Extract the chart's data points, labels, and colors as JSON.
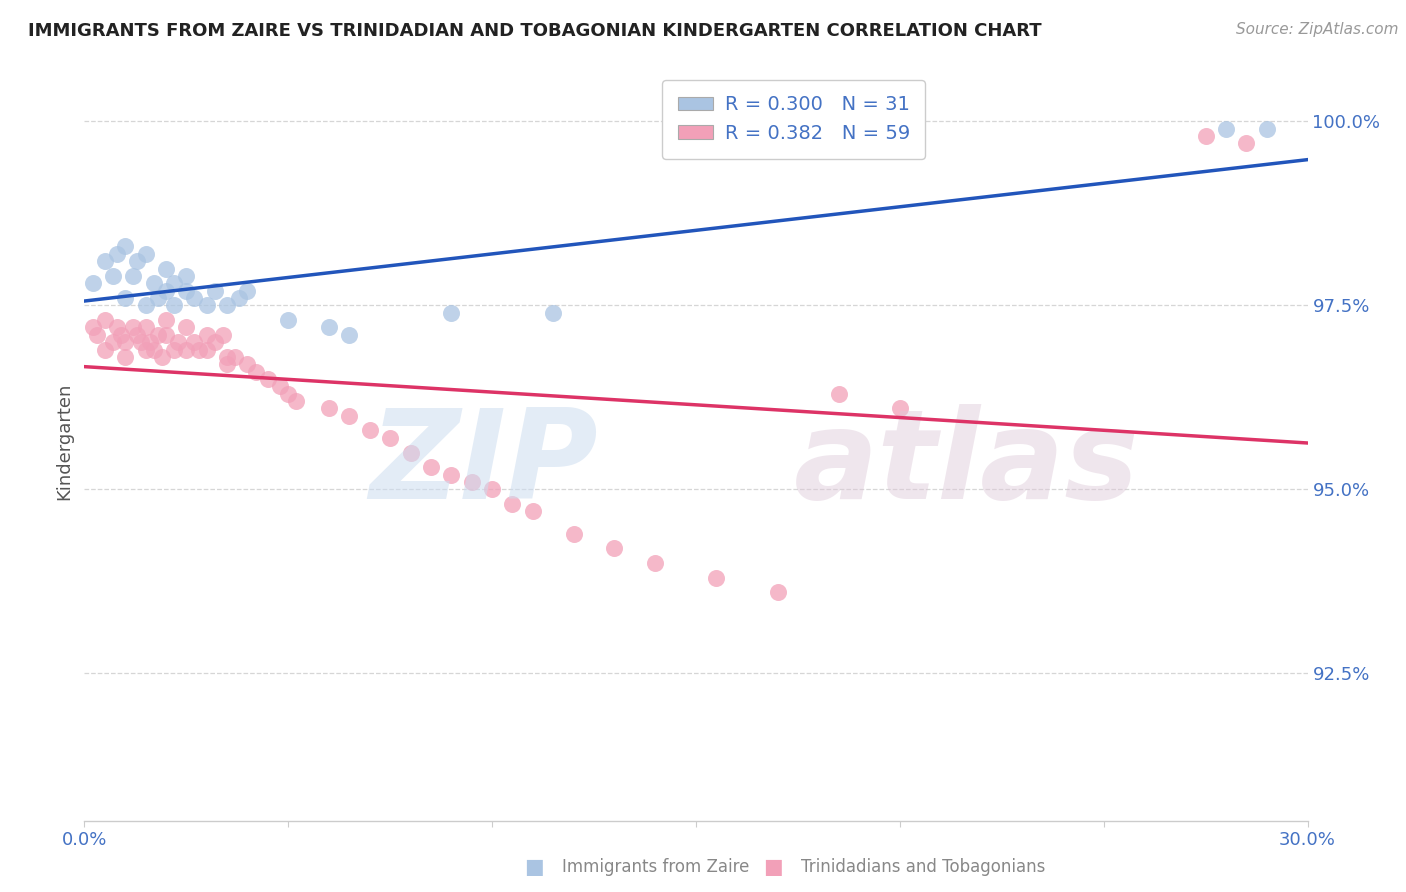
{
  "title": "IMMIGRANTS FROM ZAIRE VS TRINIDADIAN AND TOBAGONIAN KINDERGARTEN CORRELATION CHART",
  "source_text": "Source: ZipAtlas.com",
  "ylabel": "Kindergarten",
  "xlim": [
    0.0,
    0.3
  ],
  "ylim": [
    0.905,
    1.008
  ],
  "blue_R": 0.3,
  "blue_N": 31,
  "pink_R": 0.382,
  "pink_N": 59,
  "blue_color": "#aac4e2",
  "pink_color": "#f2a0b8",
  "blue_line_color": "#2255bb",
  "pink_line_color": "#dd3366",
  "legend_blue_label": "Immigrants from Zaire",
  "legend_pink_label": "Trinidadians and Tobagonians",
  "watermark_zip": "ZIP",
  "watermark_atlas": "atlas",
  "background_color": "#ffffff",
  "title_color": "#222222",
  "source_color": "#999999",
  "axis_color": "#4472c4",
  "ylabel_color": "#555555",
  "grid_color": "#cccccc",
  "blue_x": [
    0.002,
    0.005,
    0.007,
    0.008,
    0.01,
    0.01,
    0.012,
    0.013,
    0.015,
    0.015,
    0.017,
    0.018,
    0.02,
    0.02,
    0.022,
    0.022,
    0.025,
    0.025,
    0.027,
    0.03,
    0.032,
    0.035,
    0.038,
    0.04,
    0.05,
    0.06,
    0.065,
    0.09,
    0.115,
    0.28,
    0.29
  ],
  "blue_y": [
    0.978,
    0.981,
    0.979,
    0.982,
    0.976,
    0.983,
    0.979,
    0.981,
    0.975,
    0.982,
    0.978,
    0.976,
    0.977,
    0.98,
    0.978,
    0.975,
    0.977,
    0.979,
    0.976,
    0.975,
    0.977,
    0.975,
    0.976,
    0.977,
    0.973,
    0.972,
    0.971,
    0.974,
    0.974,
    0.999,
    0.999
  ],
  "pink_x": [
    0.002,
    0.003,
    0.005,
    0.005,
    0.007,
    0.008,
    0.009,
    0.01,
    0.01,
    0.012,
    0.013,
    0.014,
    0.015,
    0.015,
    0.016,
    0.017,
    0.018,
    0.019,
    0.02,
    0.02,
    0.022,
    0.023,
    0.025,
    0.025,
    0.027,
    0.028,
    0.03,
    0.03,
    0.032,
    0.034,
    0.035,
    0.035,
    0.037,
    0.04,
    0.042,
    0.045,
    0.048,
    0.05,
    0.052,
    0.06,
    0.065,
    0.07,
    0.075,
    0.08,
    0.085,
    0.09,
    0.095,
    0.1,
    0.105,
    0.11,
    0.12,
    0.13,
    0.14,
    0.155,
    0.17,
    0.185,
    0.2,
    0.275,
    0.285
  ],
  "pink_y": [
    0.972,
    0.971,
    0.973,
    0.969,
    0.97,
    0.972,
    0.971,
    0.97,
    0.968,
    0.972,
    0.971,
    0.97,
    0.969,
    0.972,
    0.97,
    0.969,
    0.971,
    0.968,
    0.971,
    0.973,
    0.969,
    0.97,
    0.969,
    0.972,
    0.97,
    0.969,
    0.971,
    0.969,
    0.97,
    0.971,
    0.968,
    0.967,
    0.968,
    0.967,
    0.966,
    0.965,
    0.964,
    0.963,
    0.962,
    0.961,
    0.96,
    0.958,
    0.957,
    0.955,
    0.953,
    0.952,
    0.951,
    0.95,
    0.948,
    0.947,
    0.944,
    0.942,
    0.94,
    0.938,
    0.936,
    0.963,
    0.961,
    0.998,
    0.997
  ]
}
